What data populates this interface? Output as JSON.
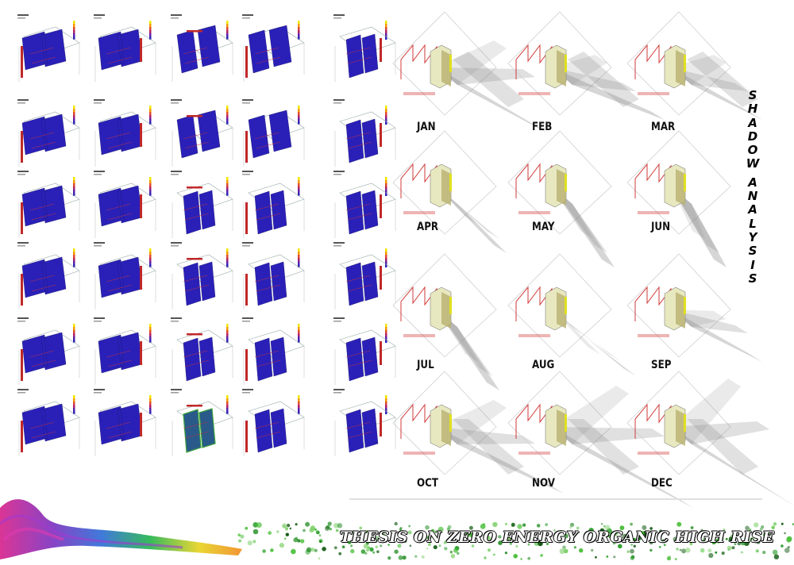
{
  "sheet": {
    "thesis_title": "THESIS ON ZERO ENERGY ORGANIC HIGH RISE",
    "panel_title_letters": [
      "S",
      "H",
      "A",
      "D",
      "O",
      "W",
      "A",
      "N",
      "A",
      "L",
      "Y",
      "S",
      "I",
      "S"
    ]
  },
  "shadow_analysis": {
    "months": [
      "JAN",
      "FEB",
      "MAR",
      "APR",
      "MAY",
      "JUN",
      "JUL",
      "AUG",
      "SEP",
      "OCT",
      "NOV",
      "DEC"
    ]
  },
  "insolation_grid": {
    "rows": 6,
    "columns": 5
  },
  "colors": {
    "insolation_fill": "#2a20b8",
    "insolation_hot": "#c0282a",
    "site_lines": "#d23a3a",
    "shadow": "#888888",
    "building": "#e8e8c0"
  }
}
